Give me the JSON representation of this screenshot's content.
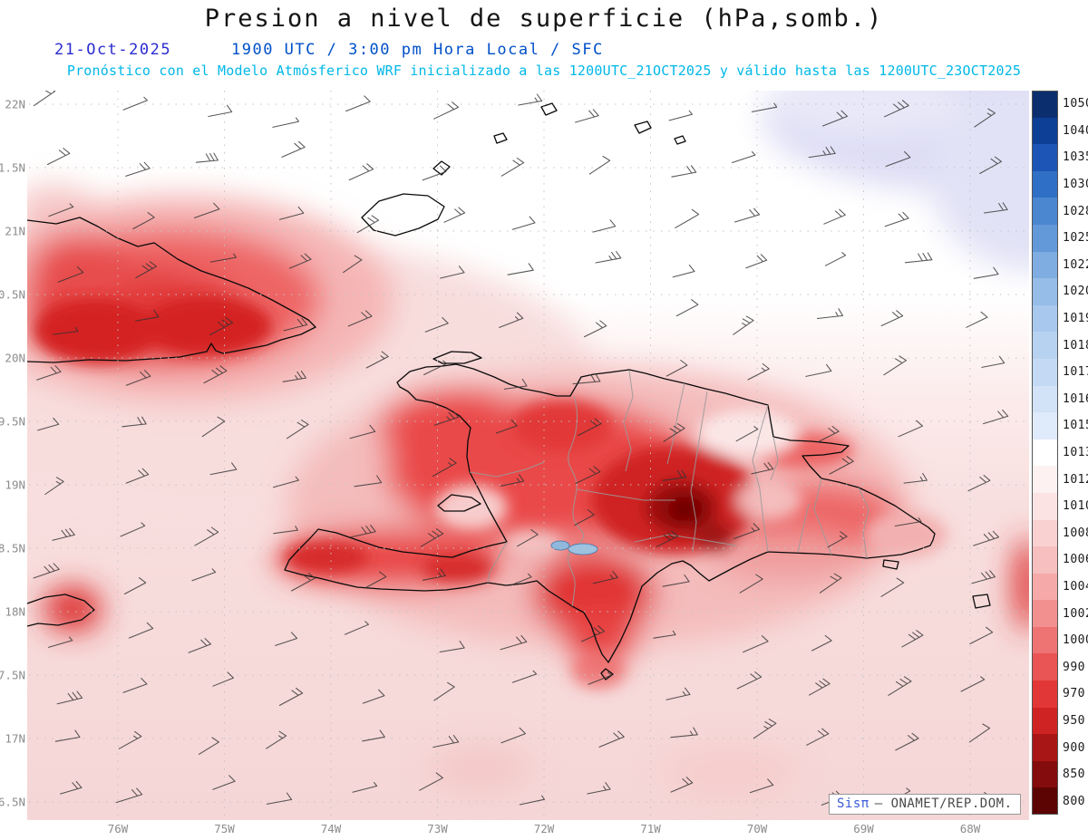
{
  "header": {
    "title": "Presion a nivel de superficie (hPa,somb.)",
    "date": "21-Oct-2025",
    "time_line": "1900 UTC / 3:00 pm Hora Local / SFC",
    "forecast_line": "Pronóstico con el Modelo Atmósferico WRF inicializado a las 1200UTC_21OCT2025 y válido hasta las  1200UTC_23OCT2025"
  },
  "map": {
    "y_axis_labels": [
      "22N",
      "1.5N",
      "21N",
      "0.5N",
      "20N",
      "9.5N",
      "19N",
      "8.5N",
      "18N",
      "7.5N",
      "17N",
      "6.5N"
    ],
    "x_axis_labels": [
      "76W",
      "75W",
      "74W",
      "73W",
      "72W",
      "71W",
      "70W",
      "69W",
      "68W"
    ],
    "watermark": {
      "brand": "Sisπ",
      "org": "— ONAMET/REP.DOM."
    }
  },
  "colorbar": {
    "values": [
      "1050",
      "1040",
      "1035",
      "1030",
      "1028",
      "1025",
      "1022",
      "1020",
      "1019",
      "1018",
      "1017",
      "1016",
      "1015",
      "1013",
      "1012",
      "1010",
      "1008",
      "1006",
      "1004",
      "1002",
      "1000",
      "990",
      "970",
      "950",
      "900",
      "850",
      "800"
    ],
    "colors": [
      "#0b2e6f",
      "#0e3f97",
      "#1c55b6",
      "#2f6fc5",
      "#4a87d0",
      "#6398d9",
      "#7fade1",
      "#96bce8",
      "#a8c8ed",
      "#b7d2f1",
      "#c4daf4",
      "#d2e2f7",
      "#dfeafa",
      "#ffffff",
      "#fdf1f1",
      "#fbe3e3",
      "#f9d1d1",
      "#f7bfbf",
      "#f5a9a9",
      "#f29090",
      "#ee7373",
      "#e95454",
      "#e23737",
      "#cf2323",
      "#a91616",
      "#840c0c",
      "#5c0404"
    ]
  },
  "theme": {
    "title_color": "#141414",
    "date_color": "#2b2bcf",
    "time_color": "#0050c8",
    "forecast_color": "#00b8e8",
    "axis_label_color": "#8c8c8c",
    "sea_pink": "#f6d8d8",
    "high_pressure_lavender": "#dddcf4",
    "low_core_maroon": "#6f0606"
  }
}
